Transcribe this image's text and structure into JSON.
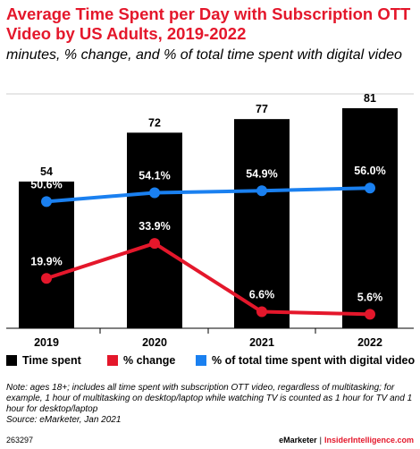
{
  "title": "Average Time Spent per Day with Subscription OTT Video by US Adults, 2019-2022",
  "subtitle": "minutes, % change, and % of total time spent with digital video",
  "colors": {
    "bar": "#000000",
    "pct_change": "#e4172b",
    "share": "#1a80f0",
    "title": "#e4172b"
  },
  "chart_data": {
    "type": "bar",
    "categories": [
      "2019",
      "2020",
      "2021",
      "2022"
    ],
    "series": [
      {
        "name": "Time spent",
        "type": "bar",
        "values": [
          54,
          72,
          77,
          81
        ],
        "labels": [
          "54",
          "72",
          "77",
          "81"
        ]
      },
      {
        "name": "% change",
        "type": "line",
        "values": [
          19.9,
          33.9,
          6.6,
          5.6
        ],
        "labels": [
          "19.9%",
          "33.9%",
          "6.6%",
          "5.6%"
        ]
      },
      {
        "name": "% of total time spent with digital video",
        "type": "line",
        "values": [
          50.6,
          54.1,
          54.9,
          56.0
        ],
        "labels": [
          "50.6%",
          "54.1%",
          "54.9%",
          "56.0%"
        ]
      }
    ],
    "legend_position": "bottom",
    "grid": false
  },
  "legend": [
    "Time spent",
    "% change",
    "% of total time spent with digital video"
  ],
  "note": "Note: ages 18+; includes all time spent with subscription OTT video, regardless of multitasking; for example, 1 hour of multitasking on desktop/laptop while watching TV is counted as 1 hour for TV and 1 hour for desktop/laptop",
  "source": "Source: eMarketer, Jan 2021",
  "footer": {
    "chart_id": "263297",
    "brand_left": "eMarketer",
    "separator": "|",
    "brand_right": "InsiderIntelligence.com"
  }
}
